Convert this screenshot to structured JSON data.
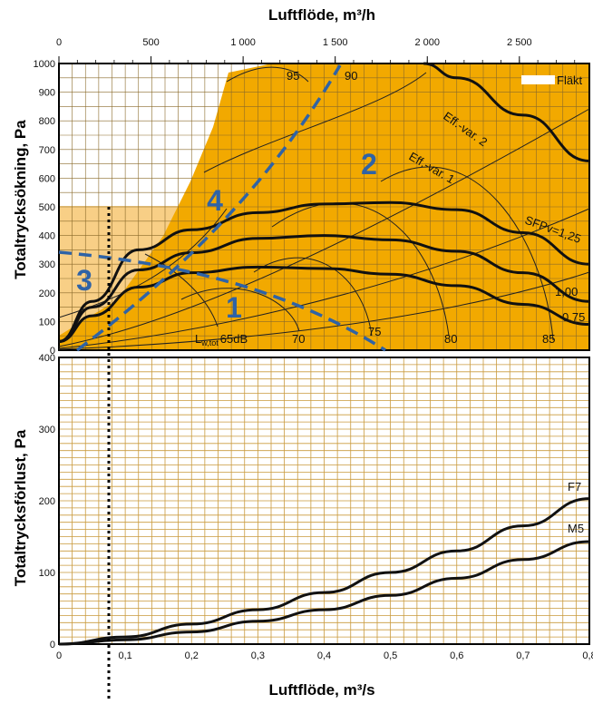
{
  "chart_data": [
    {
      "type": "line",
      "title": "Luftflöde, m³/h",
      "xlabel_top": "Luftflöde, m³/h",
      "ylabel": "Totaltrycksökning, Pa",
      "xlim_top": [
        0,
        2880
      ],
      "xlim": [
        0,
        0.8
      ],
      "ylim": [
        0,
        1000
      ],
      "top_ticks": [
        "0",
        "500",
        "1 000",
        "1 500",
        "2 000",
        "2 500"
      ],
      "top_tick_values": [
        0,
        500,
        1000,
        1500,
        2000,
        2500
      ],
      "y_ticks": [
        0,
        100,
        200,
        300,
        400,
        500,
        600,
        700,
        800,
        900,
        1000
      ],
      "grid": true,
      "legend_label": "Fläkt",
      "colors": {
        "operating_area": "#f2a900",
        "light_area": "#f8cf86",
        "zone_lines": "#2f63a6"
      },
      "fan_curves": [
        {
          "x": [
            0.0,
            0.05,
            0.12,
            0.2,
            0.3,
            0.4,
            0.5,
            0.6,
            0.7,
            0.8
          ],
          "y": [
            30,
            120,
            220,
            270,
            290,
            285,
            265,
            225,
            160,
            90
          ]
        },
        {
          "x": [
            0.0,
            0.05,
            0.12,
            0.2,
            0.3,
            0.4,
            0.5,
            0.6,
            0.7,
            0.8
          ],
          "y": [
            30,
            150,
            280,
            340,
            390,
            400,
            385,
            345,
            270,
            170
          ]
        },
        {
          "x": [
            0.0,
            0.05,
            0.12,
            0.2,
            0.3,
            0.4,
            0.5,
            0.6,
            0.7,
            0.8
          ],
          "y": [
            30,
            170,
            350,
            420,
            480,
            510,
            515,
            490,
            410,
            300
          ]
        },
        {
          "x": [
            0.55,
            0.6,
            0.7,
            0.8
          ],
          "y": [
            1000,
            950,
            820,
            660
          ]
        }
      ],
      "curve_labels": [
        "Eff.-var. 2",
        "Eff.-var. 1",
        "SFPv=1,25",
        "1,00",
        "0,75"
      ],
      "sound_labels": [
        "95",
        "90",
        "85",
        "80",
        "75",
        "70",
        "65dB"
      ],
      "sound_label_prefix": "L",
      "sound_label_sub": "w,tot",
      "zone_labels": [
        "1",
        "2",
        "3",
        "4"
      ]
    },
    {
      "type": "line",
      "xlabel": "Luftflöde, m³/s",
      "ylabel": "Totaltrycksförlust, Pa",
      "xlim": [
        0,
        0.8
      ],
      "ylim": [
        0,
        400
      ],
      "x_ticks": [
        "0",
        "0,1",
        "0,2",
        "0,3",
        "0,4",
        "0,5",
        "0,6",
        "0,7",
        "0,8"
      ],
      "x_tick_values": [
        0,
        0.1,
        0.2,
        0.3,
        0.4,
        0.5,
        0.6,
        0.7,
        0.8
      ],
      "y_ticks": [
        0,
        100,
        200,
        300,
        400
      ],
      "grid": true,
      "series": [
        {
          "name": "F7",
          "x": [
            0,
            0.1,
            0.2,
            0.3,
            0.4,
            0.5,
            0.6,
            0.7,
            0.8
          ],
          "y": [
            0,
            10,
            28,
            48,
            72,
            100,
            130,
            165,
            203
          ]
        },
        {
          "name": "M5",
          "x": [
            0,
            0.1,
            0.2,
            0.3,
            0.4,
            0.5,
            0.6,
            0.7,
            0.8
          ],
          "y": [
            0,
            6,
            17,
            32,
            48,
            68,
            92,
            118,
            143
          ]
        }
      ]
    }
  ]
}
